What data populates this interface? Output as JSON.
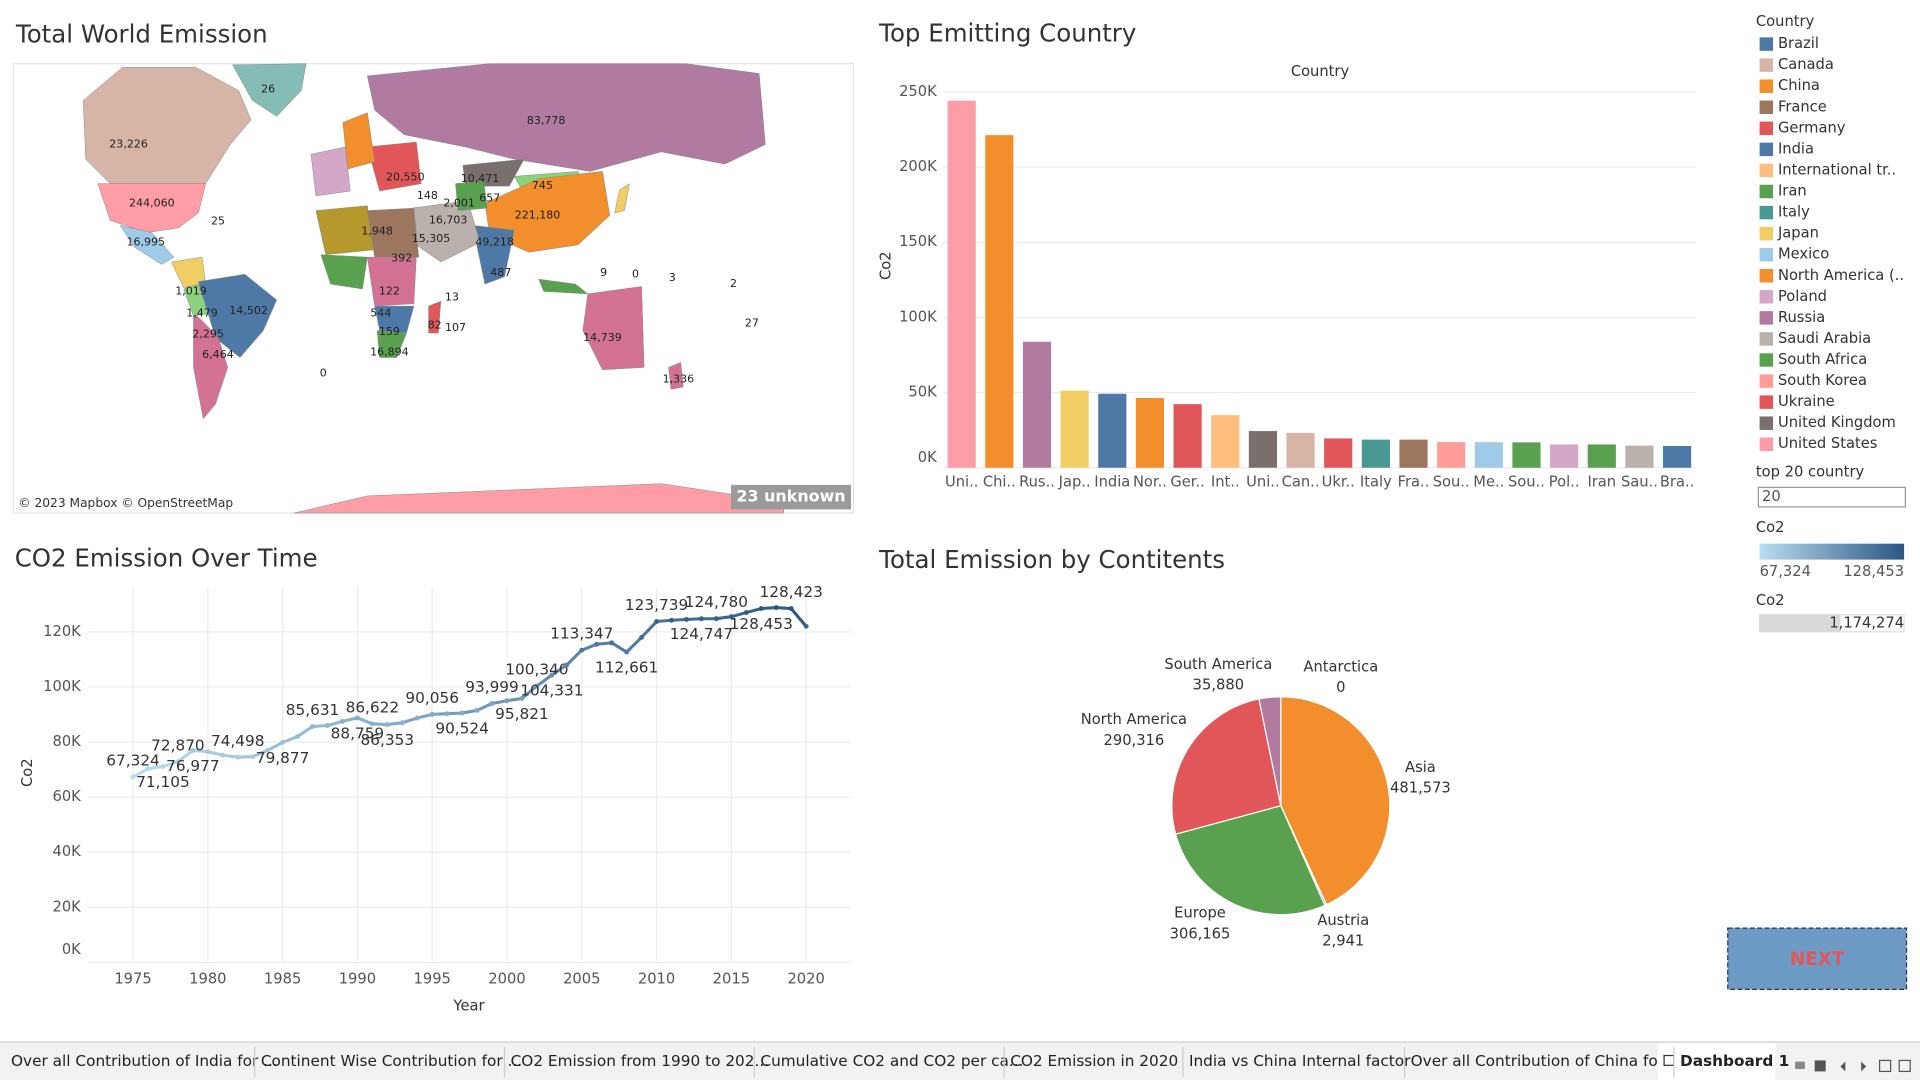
{
  "chart_data": [
    {
      "type": "map",
      "title": "Total World Emission",
      "labels": [
        "23,226",
        "244,060",
        "26",
        "83,778",
        "221,180",
        "10,471",
        "745",
        "20,550",
        "1,948",
        "49,218",
        "14,502",
        "14,739",
        "16,995",
        "6,464",
        "2,295",
        "1,479",
        "1,019",
        "25",
        "16,894",
        "0",
        "1,336",
        "107",
        "13",
        "487",
        "15,305",
        "16,703",
        "392",
        "122",
        "82",
        "0",
        "3",
        "2",
        "27",
        "9",
        "2,001",
        "657",
        "148",
        "544",
        "159"
      ],
      "attribution": "© 2023 Mapbox © OpenStreetMap",
      "unknown": "23 unknown"
    },
    {
      "type": "bar",
      "title": "Top Emitting Country",
      "header": "Country",
      "y_label": "Co2",
      "categories": [
        "Uni..",
        "Chi..",
        "Rus..",
        "Jap..",
        "India",
        "Nor..",
        "Ger..",
        "Int..",
        "Uni..",
        "Can..",
        "Ukr..",
        "Italy",
        "Fra..",
        "Sou..",
        "Me..",
        "Sou..",
        "Pol..",
        "Iran",
        "Sau..",
        "Bra.."
      ],
      "values": [
        244060,
        221180,
        83778,
        51300,
        49218,
        46400,
        42300,
        35000,
        24400,
        23226,
        19500,
        18700,
        18700,
        17100,
        16995,
        16894,
        15500,
        15500,
        14700,
        14502
      ],
      "colors": [
        "#ff9da7",
        "#f28e2b",
        "#b07aa1",
        "#f1ce63",
        "#4e79a7",
        "#f28e2b",
        "#e15759",
        "#ffbe7d",
        "#79706e",
        "#d7b5a6",
        "#e15759",
        "#499894",
        "#9d7660",
        "#ff9d9a",
        "#a0cbe8",
        "#59a14f",
        "#d4a6c8",
        "#59a14f",
        "#bab0ac",
        "#4e79a7"
      ],
      "ylim": [
        0,
        250000
      ],
      "yticks": [
        {
          "value": 0,
          "label": "0K"
        },
        {
          "value": 50000,
          "label": "50K"
        },
        {
          "value": 100000,
          "label": "100K"
        },
        {
          "value": 150000,
          "label": "150K"
        },
        {
          "value": 200000,
          "label": "200K"
        },
        {
          "value": 250000,
          "label": "250K"
        }
      ],
      "grid": true
    },
    {
      "type": "line",
      "title": "CO2 Emission Over Time",
      "x_label": "Year",
      "y_label": "Co2",
      "x": [
        1975,
        1976,
        1977,
        1978,
        1979,
        1980,
        1981,
        1982,
        1983,
        1984,
        1985,
        1986,
        1987,
        1988,
        1989,
        1990,
        1991,
        1992,
        1993,
        1994,
        1995,
        1996,
        1997,
        1998,
        1999,
        2000,
        2001,
        2002,
        2003,
        2004,
        2005,
        2006,
        2007,
        2008,
        2009,
        2010,
        2011,
        2012,
        2013,
        2014,
        2015,
        2016,
        2017,
        2018,
        2019,
        2020
      ],
      "values": [
        67324,
        70300,
        71105,
        72870,
        76977,
        76500,
        75200,
        74498,
        74700,
        77000,
        79877,
        82000,
        85631,
        86000,
        87500,
        88759,
        86622,
        86353,
        87000,
        88700,
        90056,
        90300,
        90524,
        91500,
        93999,
        95000,
        95821,
        100340,
        104331,
        108000,
        113347,
        115500,
        116000,
        112661,
        118000,
        123739,
        124200,
        124500,
        124747,
        124780,
        125500,
        127000,
        128453,
        128800,
        128423,
        122000
      ],
      "value_labels": [
        "67,324",
        null,
        "71,105",
        "72,870",
        "76,977",
        null,
        null,
        "74,498",
        null,
        null,
        "79,877",
        null,
        "85,631",
        null,
        null,
        "88,759",
        "86,622",
        "86,353",
        null,
        null,
        "90,056",
        null,
        "90,524",
        null,
        "93,999",
        null,
        "95,821",
        "100,340",
        "104,331",
        null,
        "113,347",
        null,
        null,
        "112,661",
        null,
        "123,739",
        null,
        null,
        "124,747",
        "124,780",
        null,
        null,
        "128,453",
        null,
        "128,423",
        null
      ],
      "color_scale": [
        "#b9ddf1",
        "#2a5783"
      ],
      "xlim": [
        1972,
        2023
      ],
      "xticks": [
        1975,
        1980,
        1985,
        1990,
        1995,
        2000,
        2005,
        2010,
        2015,
        2020
      ],
      "ylim": [
        0,
        136000
      ],
      "yticks": [
        {
          "value": 0,
          "label": "0K"
        },
        {
          "value": 20000,
          "label": "20K"
        },
        {
          "value": 40000,
          "label": "40K"
        },
        {
          "value": 60000,
          "label": "60K"
        },
        {
          "value": 80000,
          "label": "80K"
        },
        {
          "value": 100000,
          "label": "100K"
        },
        {
          "value": 120000,
          "label": "120K"
        }
      ],
      "grid": true
    },
    {
      "type": "pie",
      "title": "Total Emission by Contitents",
      "categories": [
        "Asia",
        "Austria",
        "Europe",
        "North America",
        "South America",
        "Antarctica"
      ],
      "values": [
        481573,
        2941,
        306165,
        290316,
        35880,
        0
      ],
      "value_labels": [
        "481,573",
        "2,941",
        "306,165",
        "290,316",
        "35,880",
        "0"
      ],
      "colors": [
        "#f28e2b",
        "#499894",
        "#59a14f",
        "#e15759",
        "#b07aa1",
        "#4e79a7"
      ]
    }
  ],
  "legend": {
    "title": "Country",
    "items": [
      {
        "name": "Brazil",
        "color": "#4e79a7"
      },
      {
        "name": "Canada",
        "color": "#d7b5a6"
      },
      {
        "name": "China",
        "color": "#f28e2b"
      },
      {
        "name": "France",
        "color": "#9d7660"
      },
      {
        "name": "Germany",
        "color": "#e15759"
      },
      {
        "name": "India",
        "color": "#4e79a7"
      },
      {
        "name": "International tr..",
        "color": "#ffbe7d"
      },
      {
        "name": "Iran",
        "color": "#59a14f"
      },
      {
        "name": "Italy",
        "color": "#499894"
      },
      {
        "name": "Japan",
        "color": "#f1ce63"
      },
      {
        "name": "Mexico",
        "color": "#a0cbe8"
      },
      {
        "name": "North America (..",
        "color": "#f28e2b"
      },
      {
        "name": "Poland",
        "color": "#d4a6c8"
      },
      {
        "name": "Russia",
        "color": "#b07aa1"
      },
      {
        "name": "Saudi Arabia",
        "color": "#bab0ac"
      },
      {
        "name": "South Africa",
        "color": "#59a14f"
      },
      {
        "name": "South Korea",
        "color": "#ff9d9a"
      },
      {
        "name": "Ukraine",
        "color": "#e15759"
      },
      {
        "name": "United Kingdom",
        "color": "#79706e"
      },
      {
        "name": "United States",
        "color": "#ff9da7"
      }
    ]
  },
  "filters": {
    "top_n_title": "top 20 country",
    "top_n_value": "20",
    "color_title": "Co2",
    "color_min": "67,324",
    "color_max": "128,453",
    "size_title": "Co2",
    "size_value": "1,174,274"
  },
  "next_button": "NEXT",
  "tabs": [
    "Over all Contribution of India for ...",
    "Continent Wise Contribution for ...",
    "CO2 Emission from 1990 to 202...",
    "Cumulative CO2 and CO2 per ca...",
    "CO2 Emission in 2020",
    "India vs China Internal factor",
    "Over all Contribution of China fo...",
    "Dashboard 1"
  ]
}
